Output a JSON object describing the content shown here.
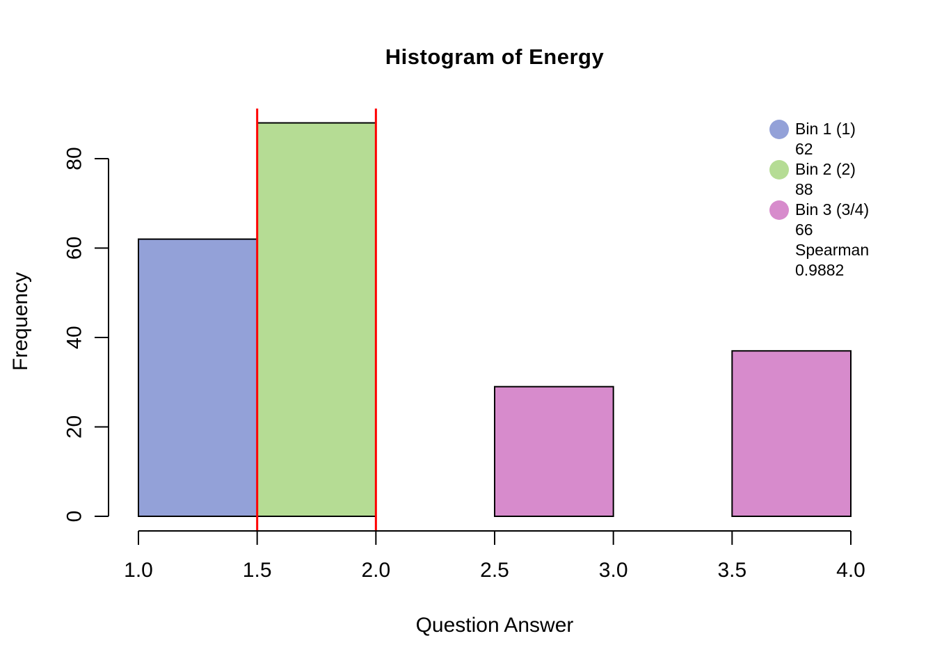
{
  "figure": {
    "background_color": "#FFFFFF"
  },
  "chart_data": {
    "type": "bar",
    "subtype": "histogram",
    "title": "Histogram of Energy",
    "xlabel": "Question Answer",
    "ylabel": "Frequency",
    "xlim": [
      1.0,
      4.0
    ],
    "ylim": [
      0,
      88
    ],
    "grid": false,
    "x_ticks": [
      "1.0",
      "1.5",
      "2.0",
      "2.5",
      "3.0",
      "3.5",
      "4.0"
    ],
    "x_tick_values": [
      1.0,
      1.5,
      2.0,
      2.5,
      3.0,
      3.5,
      4.0
    ],
    "y_ticks": [
      "0",
      "20",
      "40",
      "60",
      "80"
    ],
    "y_tick_values": [
      0,
      20,
      40,
      60,
      80
    ],
    "bins": [
      {
        "x0": 1.0,
        "x1": 1.5,
        "count": 62,
        "color": "#93A1D8"
      },
      {
        "x0": 1.5,
        "x1": 2.0,
        "count": 88,
        "color": "#B5DC94"
      },
      {
        "x0": 2.0,
        "x1": 2.5,
        "count": 0,
        "color": null
      },
      {
        "x0": 2.5,
        "x1": 3.0,
        "count": 29,
        "color": "#D78BCC"
      },
      {
        "x0": 3.0,
        "x1": 3.5,
        "count": 0,
        "color": null
      },
      {
        "x0": 3.5,
        "x1": 4.0,
        "count": 37,
        "color": "#D78BCC"
      }
    ],
    "bar_border_color": "#000000",
    "axis_color": "#000000",
    "vlines": {
      "values": [
        1.5,
        2.0
      ],
      "color": "#FF0000"
    },
    "legend": {
      "position": "top-right",
      "items": [
        {
          "swatch_color": "#93A1D8",
          "lines": [
            "Bin 1 (1)",
            "62"
          ]
        },
        {
          "swatch_color": "#B5DC94",
          "lines": [
            "Bin 2 (2)",
            "88"
          ]
        },
        {
          "swatch_color": "#D78BCC",
          "lines": [
            "Bin 3 (3/4)",
            "66",
            "Spearman",
            "0.9882"
          ]
        }
      ]
    }
  }
}
